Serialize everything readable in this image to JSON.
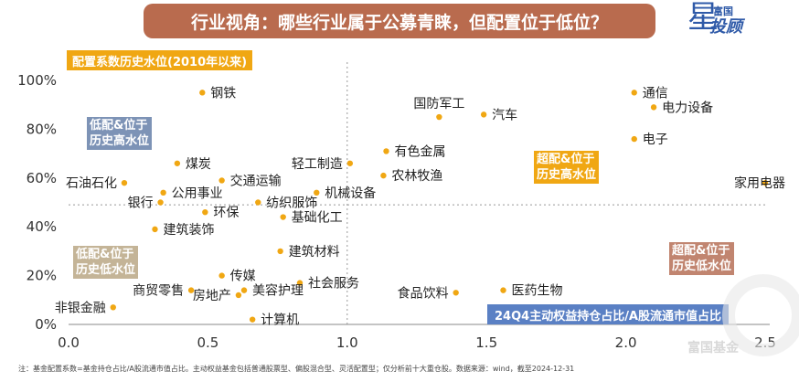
{
  "header": {
    "title": "行业视角：哪些行业属于公募青睐，但配置位于低位？",
    "subtitle": "配置系数历史水位(2010年以来)",
    "logo_line1": "富国",
    "logo_line2": "投顾",
    "logo_star": "星"
  },
  "quadrants": {
    "top_left": [
      "低配&位于",
      "历史高水位"
    ],
    "top_right": [
      "超配&位于",
      "历史高水位"
    ],
    "bottom_left": [
      "低配&位于",
      "历史低水位"
    ],
    "bottom_right": [
      "超配&位于",
      "历史低水位"
    ]
  },
  "x_axis_label": "24Q4主动权益持仓占比/A股流通市值占比",
  "footnote": "注：基金配置系数=基金持仓占比/A股流通市值占比。主动权益基金包括普通股票型、偏股混合型、灵活配置型；仅分析前十大重仓股。数据来源：wind，截至2024-12-31",
  "watermark": "富国基金",
  "colors": {
    "point": "#f0a713",
    "axis": "#888888",
    "divider": "#999999",
    "banner": "#b96b4e"
  },
  "chart_data": {
    "type": "scatter",
    "title": "配置系数历史水位(2010年以来)",
    "xlabel": "24Q4主动权益持仓占比/A股流通市值占比",
    "ylabel": "",
    "xlim": [
      0,
      2.5
    ],
    "ylim": [
      0,
      100
    ],
    "x_ticks": [
      "0.0",
      "0.5",
      "1.0",
      "1.5",
      "2.0",
      "2.5"
    ],
    "y_ticks": [
      "0%",
      "20%",
      "40%",
      "60%",
      "80%",
      "100%"
    ],
    "divider_x": 1.0,
    "divider_y": 49,
    "grid": false,
    "points": [
      {
        "label": "钢铁",
        "x": 0.48,
        "y": 95
      },
      {
        "label": "国防军工",
        "x": 1.33,
        "y": 85
      },
      {
        "label": "汽车",
        "x": 1.49,
        "y": 86
      },
      {
        "label": "通信",
        "x": 2.03,
        "y": 95
      },
      {
        "label": "电力设备",
        "x": 2.1,
        "y": 89
      },
      {
        "label": "电子",
        "x": 2.03,
        "y": 76
      },
      {
        "label": "有色金属",
        "x": 1.14,
        "y": 71
      },
      {
        "label": "轻工制造",
        "x": 1.01,
        "y": 66
      },
      {
        "label": "农林牧渔",
        "x": 1.13,
        "y": 61
      },
      {
        "label": "煤炭",
        "x": 0.39,
        "y": 66
      },
      {
        "label": "石油石化",
        "x": 0.2,
        "y": 58
      },
      {
        "label": "交通运输",
        "x": 0.55,
        "y": 59
      },
      {
        "label": "公用事业",
        "x": 0.34,
        "y": 54
      },
      {
        "label": "机械设备",
        "x": 0.89,
        "y": 54
      },
      {
        "label": "纺织服饰",
        "x": 0.68,
        "y": 50
      },
      {
        "label": "银行",
        "x": 0.33,
        "y": 50
      },
      {
        "label": "环保",
        "x": 0.49,
        "y": 46
      },
      {
        "label": "基础化工",
        "x": 0.77,
        "y": 44
      },
      {
        "label": "建筑装饰",
        "x": 0.31,
        "y": 39
      },
      {
        "label": "家用电器",
        "x": 2.5,
        "y": 58
      },
      {
        "label": "建筑材料",
        "x": 0.76,
        "y": 30
      },
      {
        "label": "传媒",
        "x": 0.55,
        "y": 20
      },
      {
        "label": "社会服务",
        "x": 0.83,
        "y": 17
      },
      {
        "label": "商贸零售",
        "x": 0.44,
        "y": 14
      },
      {
        "label": "美容护理",
        "x": 0.63,
        "y": 14
      },
      {
        "label": "房地产",
        "x": 0.61,
        "y": 12
      },
      {
        "label": "医药生物",
        "x": 1.56,
        "y": 14
      },
      {
        "label": "食品饮料",
        "x": 1.39,
        "y": 13
      },
      {
        "label": "非银金融",
        "x": 0.16,
        "y": 7
      },
      {
        "label": "计算机",
        "x": 0.66,
        "y": 2
      }
    ]
  }
}
